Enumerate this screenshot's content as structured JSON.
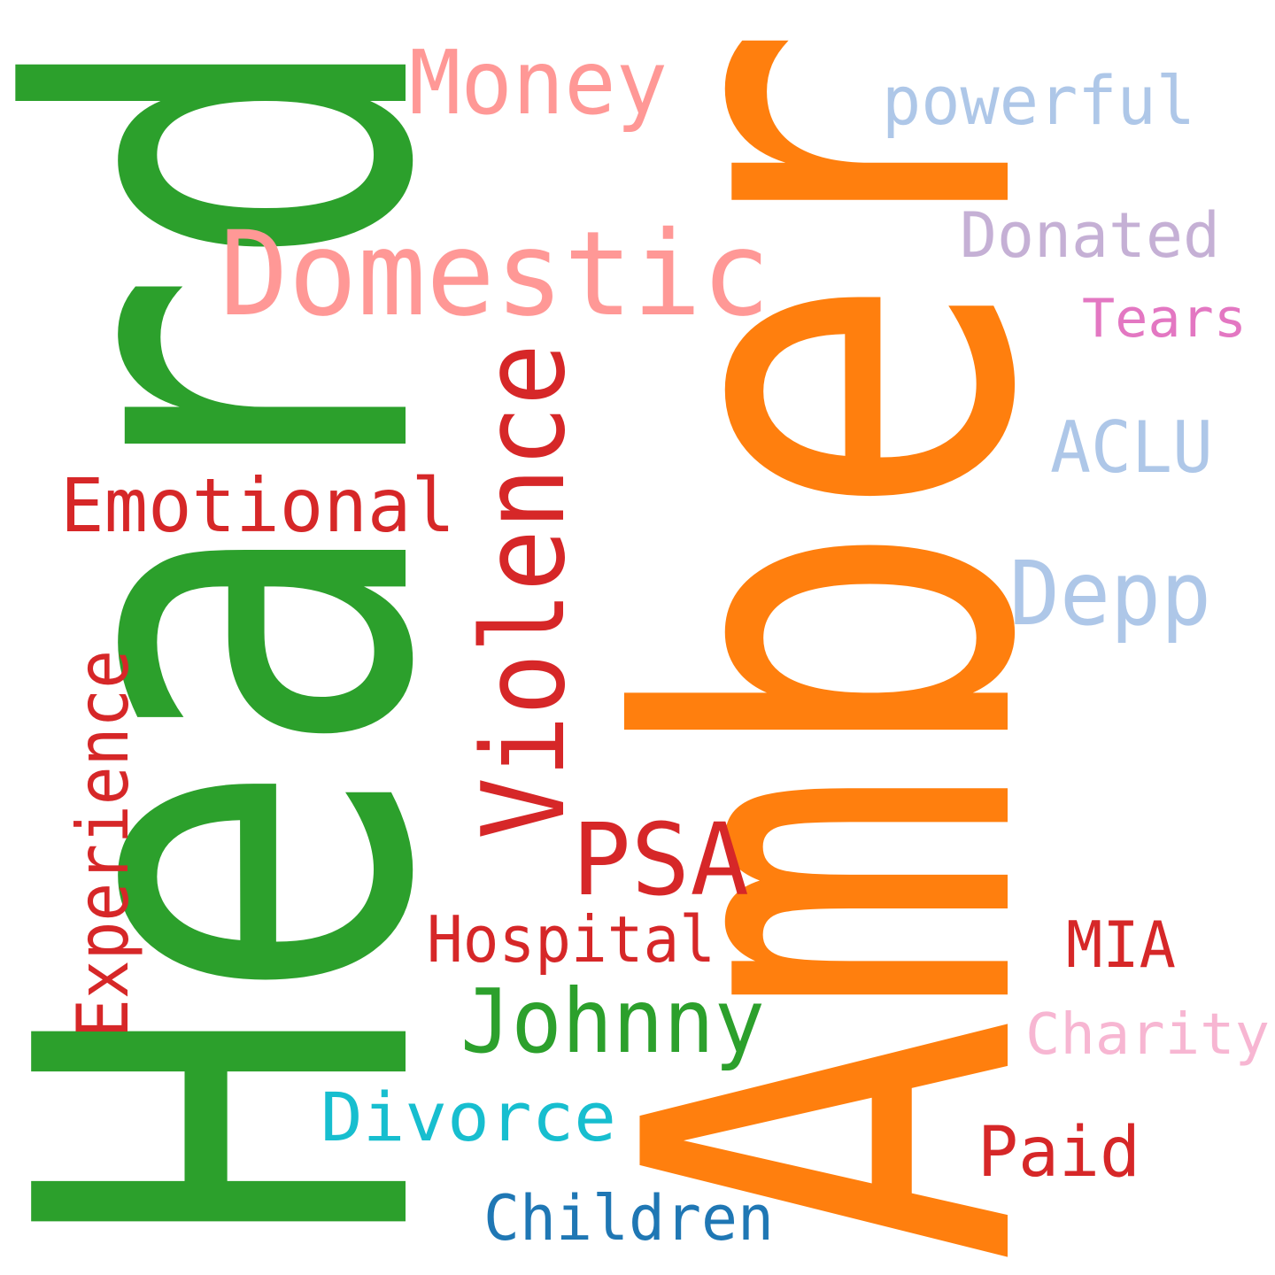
{
  "words": {
    "heard": {
      "text": "Heard",
      "color": "#2ca02c"
    },
    "amber": {
      "text": "Amber",
      "color": "#ff7f0e"
    },
    "domestic": {
      "text": "Domestic",
      "color": "#ff9896"
    },
    "money": {
      "text": "Money",
      "color": "#ff9896"
    },
    "violence": {
      "text": "Violence",
      "color": "#d62728"
    },
    "emotional": {
      "text": "Emotional",
      "color": "#d62728"
    },
    "experience": {
      "text": "Experience",
      "color": "#d62728"
    },
    "psa": {
      "text": "PSA",
      "color": "#d62728"
    },
    "hospital": {
      "text": "Hospital",
      "color": "#d62728"
    },
    "johnny": {
      "text": "Johnny",
      "color": "#2ca02c"
    },
    "divorce": {
      "text": "Divorce",
      "color": "#17becf"
    },
    "children": {
      "text": "Children",
      "color": "#1f77b4"
    },
    "powerful": {
      "text": "powerful",
      "color": "#aec7e8"
    },
    "donated": {
      "text": "Donated",
      "color": "#c5b0d5"
    },
    "tears": {
      "text": "Tears",
      "color": "#e377c2"
    },
    "aclu": {
      "text": "ACLU",
      "color": "#aec7e8"
    },
    "depp": {
      "text": "Depp",
      "color": "#aec7e8"
    },
    "mia": {
      "text": "MIA",
      "color": "#d62728"
    },
    "charity": {
      "text": "Charity",
      "color": "#f7b6d2"
    },
    "paid": {
      "text": "Paid",
      "color": "#d62728"
    }
  }
}
